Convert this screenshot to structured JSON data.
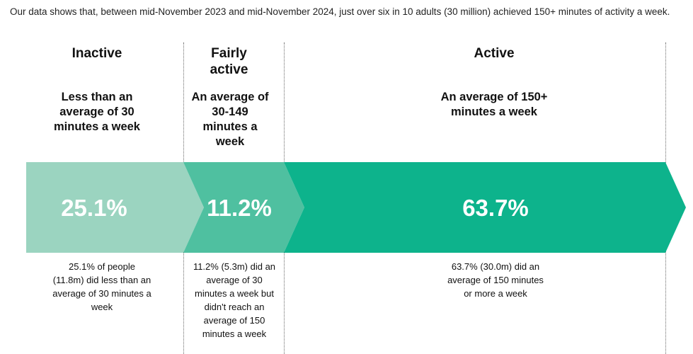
{
  "intro_text": "Our data shows that, between mid-November 2023 and mid-November 2024, just over six in 10 adults (30 million) achieved 150+ minutes of activity a week.",
  "columns": [
    {
      "title": "Inactive",
      "definition": "Less than an average of 30 minutes a week",
      "description": "25.1% of people (11.8m) did less than an average of 30 minutes a week"
    },
    {
      "title": "Fairly active",
      "definition": "An average of 30-149 minutes a week",
      "description": "11.2% (5.3m) did an average of 30 minutes a week but didn't reach an average of 150 minutes a week"
    },
    {
      "title": "Active",
      "definition": "An average of 150+ minutes a week",
      "description": "63.7% (30.0m) did an average of 150 minutes or more a week"
    }
  ],
  "chart_data": {
    "type": "bar",
    "orientation": "horizontal-stacked",
    "categories": [
      "Inactive",
      "Fairly active",
      "Active"
    ],
    "values": [
      25.1,
      11.2,
      63.7
    ],
    "labels": [
      "25.1%",
      "11.2%",
      "63.7%"
    ],
    "unit": "%",
    "colors": [
      "#9bd4c0",
      "#4fc0a0",
      "#0db38c"
    ]
  }
}
